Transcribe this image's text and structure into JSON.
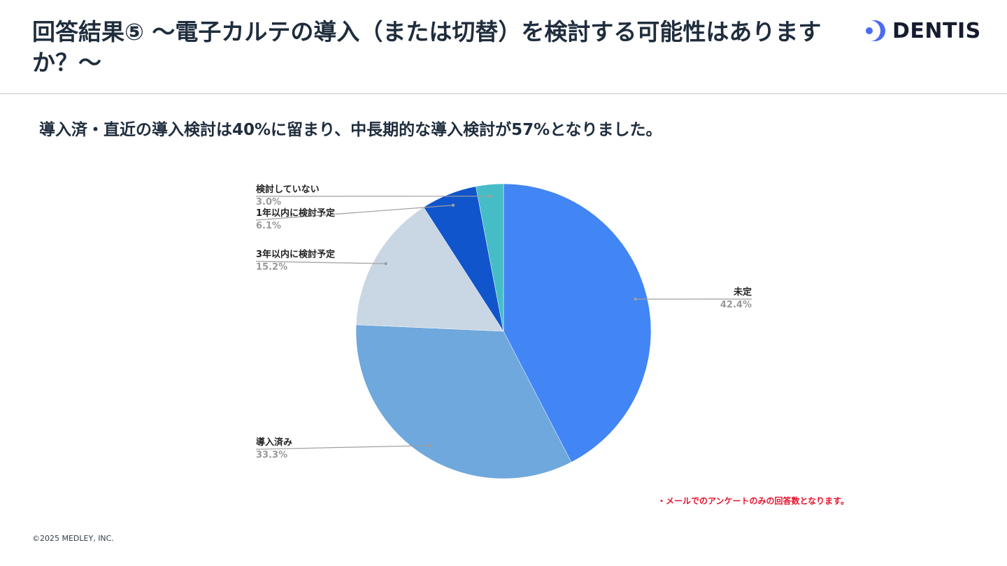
{
  "header": {
    "title": "回答結果⑤ 〜電子カルテの導入（または切替）を検討する可能性はありますか？〜",
    "logo_text": "DENTIS"
  },
  "subtitle": "導入済・直近の導入検討は40%に留まり、中長期的な導入検討が57%となりました。",
  "chart_data": {
    "type": "pie",
    "title": "",
    "slices": [
      {
        "label": "未定",
        "value": 42.4,
        "value_label": "42.4%",
        "color": "#4285f4"
      },
      {
        "label": "導入済み",
        "value": 33.3,
        "value_label": "33.3%",
        "color": "#6fa8dc"
      },
      {
        "label": "3年以内に検討予定",
        "value": 15.2,
        "value_label": "15.2%",
        "color": "#c9d6e3"
      },
      {
        "label": "1年以内に検討予定",
        "value": 6.1,
        "value_label": "6.1%",
        "color": "#1155cc"
      },
      {
        "label": "検討していない",
        "value": 3.0,
        "value_label": "3.0%",
        "color": "#46bdc6"
      }
    ],
    "start": "12 o'clock",
    "direction": "clockwise",
    "legend": "none"
  },
  "footnote": "・メールでのアンケートのみの回答数となります。",
  "copyright": "©2025 MEDLEY, INC.",
  "colors": {
    "title": "#1f2d3d",
    "note": "#e8112d",
    "logo_accent": "#4b6cf0"
  }
}
